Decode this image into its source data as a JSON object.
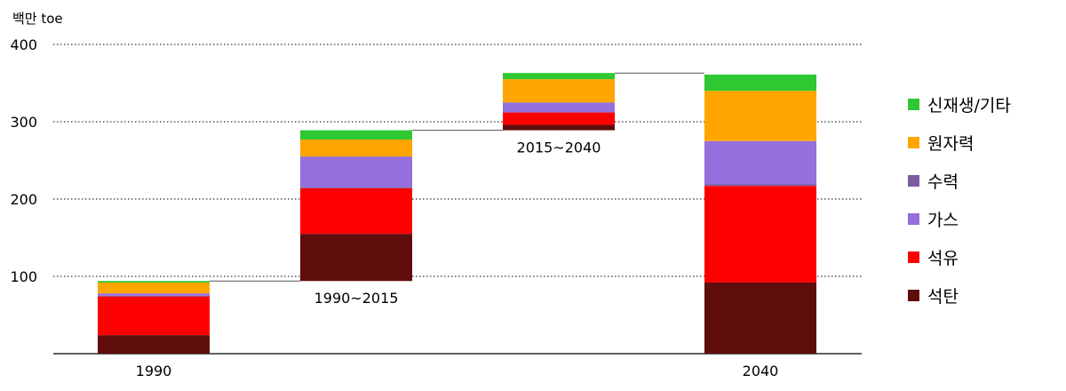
{
  "chart_data": {
    "type": "bar",
    "subtype": "waterfall",
    "unit_label": "백만 toe",
    "ylim": [
      0,
      400
    ],
    "yticks": [
      "100",
      "200",
      "300",
      "400"
    ],
    "grid": true,
    "legend_position": "right",
    "categories": [
      "1990",
      "1990~2015",
      "2015~2040",
      "2040"
    ],
    "series": [
      {
        "name": "석탄",
        "color": "#600d0d",
        "values": [
          24,
          61,
          7,
          92
        ]
      },
      {
        "name": "석유",
        "color": "#ff0000",
        "values": [
          50,
          59,
          16,
          125
        ]
      },
      {
        "name": "수력",
        "color": "#7b5c9c",
        "values": [
          1,
          1,
          0,
          2
        ]
      },
      {
        "name": "가스",
        "color": "#9370db",
        "values": [
          3,
          40,
          13,
          56
        ]
      },
      {
        "name": "원자력",
        "color": "#ffa500",
        "values": [
          14,
          22,
          30,
          65
        ]
      },
      {
        "name": "신재생/기타",
        "color": "#2ec832",
        "values": [
          2,
          12,
          8,
          21
        ]
      }
    ],
    "bases": [
      0,
      94,
      289,
      0
    ],
    "label_position": [
      "below",
      "below",
      "below",
      "below"
    ]
  }
}
